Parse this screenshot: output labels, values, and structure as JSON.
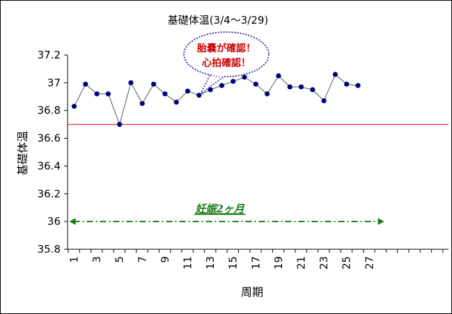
{
  "chart_data": {
    "type": "line",
    "title": "基礎体温(3/4〜3/29)",
    "xlabel": "周期",
    "ylabel": "基礎体温",
    "ylim": [
      35.8,
      37.2
    ],
    "yticks": [
      "37.2",
      "37",
      "36.8",
      "36.6",
      "36.4",
      "36.2",
      "36",
      "35.8"
    ],
    "xlim": [
      1,
      33
    ],
    "xtick_labels": [
      "1",
      "3",
      "5",
      "7",
      "9",
      "11",
      "13",
      "15",
      "17",
      "19",
      "21",
      "23",
      "25",
      "27"
    ],
    "x": [
      1,
      2,
      3,
      4,
      5,
      6,
      7,
      8,
      9,
      10,
      11,
      12,
      13,
      14,
      15,
      16,
      17,
      18,
      19,
      20,
      21,
      22,
      23,
      24,
      25,
      26
    ],
    "series": [
      {
        "values": [
          36.83,
          36.99,
          36.92,
          36.92,
          36.7,
          37.0,
          36.85,
          36.99,
          36.92,
          36.86,
          36.94,
          36.91,
          36.95,
          36.98,
          37.01,
          37.04,
          36.99,
          36.92,
          37.05,
          36.97,
          36.97,
          36.95,
          36.87,
          37.06,
          36.99,
          36.98
        ],
        "color": "#000080"
      }
    ],
    "reference_line": {
      "y": 36.7,
      "color": "#ff0000"
    },
    "pregnancy_span": {
      "label": "妊娠2ヶ月",
      "x_start": 1,
      "x_end": 28,
      "y": 36.0,
      "color": "#1a7a1a"
    },
    "callout": {
      "lines": [
        "胎嚢が確認！",
        "心拍確認！"
      ],
      "points_to_x": 12,
      "color": "#cc0000",
      "border_color": "#2222aa"
    },
    "grid": false
  }
}
